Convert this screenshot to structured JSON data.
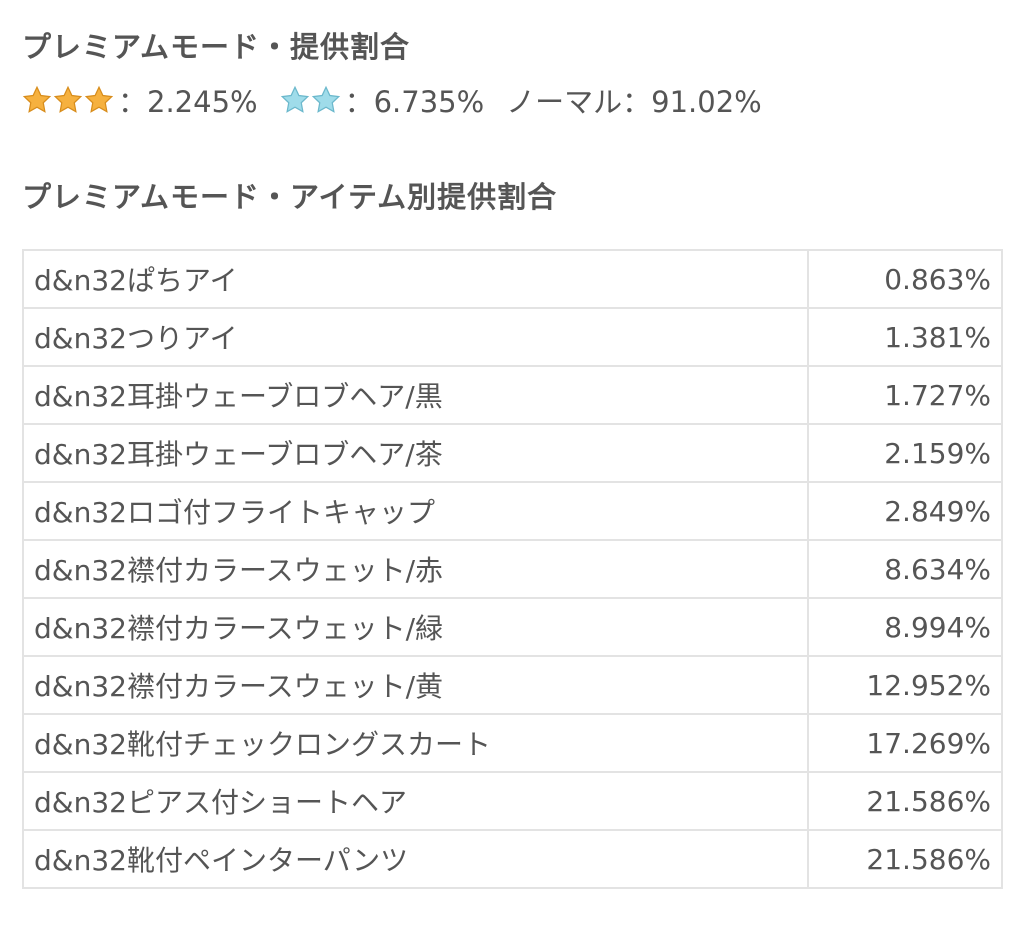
{
  "premium_mode": {
    "title": "プレミアムモード・提供割合",
    "rates": [
      {
        "stars": 3,
        "star_color": "#f2a93b",
        "label": "：2.245%"
      },
      {
        "stars": 2,
        "star_color": "#8fd3e6",
        "label": "：6.735%"
      },
      {
        "stars": 0,
        "label": "ノーマル：91.02%"
      }
    ]
  },
  "item_rates": {
    "title": "プレミアムモード・アイテム別提供割合",
    "rows": [
      {
        "name": "d&n32ぱちアイ",
        "rate": "0.863%"
      },
      {
        "name": "d&n32つりアイ",
        "rate": "1.381%"
      },
      {
        "name": "d&n32耳掛ウェーブロブヘア/黒",
        "rate": "1.727%"
      },
      {
        "name": "d&n32耳掛ウェーブロブヘア/茶",
        "rate": "2.159%"
      },
      {
        "name": "d&n32ロゴ付フライトキャップ",
        "rate": "2.849%"
      },
      {
        "name": "d&n32襟付カラースウェット/赤",
        "rate": "8.634%"
      },
      {
        "name": "d&n32襟付カラースウェット/緑",
        "rate": "8.994%"
      },
      {
        "name": "d&n32襟付カラースウェット/黄",
        "rate": "12.952%"
      },
      {
        "name": "d&n32靴付チェックロングスカート",
        "rate": "17.269%"
      },
      {
        "name": "d&n32ピアス付ショートヘア",
        "rate": "21.586%"
      },
      {
        "name": "d&n32靴付ペインターパンツ",
        "rate": "21.586%"
      }
    ]
  }
}
